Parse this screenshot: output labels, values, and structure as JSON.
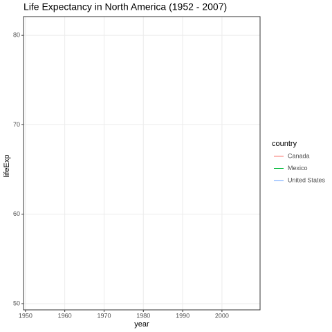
{
  "chart_data": {
    "type": "line",
    "title": "Life Expectancy in North America (1952 - 2007)",
    "x_label": "year",
    "y_label": "lifeExp",
    "x": [],
    "series": [
      {
        "name": "Canada",
        "color": "#F8766D",
        "values": []
      },
      {
        "name": "Mexico",
        "color": "#00BA38",
        "values": []
      },
      {
        "name": "United States",
        "color": "#619CFF",
        "values": []
      }
    ],
    "legend_title": "country",
    "xlim": [
      1949.5,
      2009.7
    ],
    "xticks": [
      1950,
      1960,
      1970,
      1980,
      1990,
      2000
    ],
    "ylim": [
      49.3,
      82.1
    ],
    "yticks": [
      50,
      60,
      70,
      80
    ],
    "grid": true,
    "legend": "right"
  }
}
